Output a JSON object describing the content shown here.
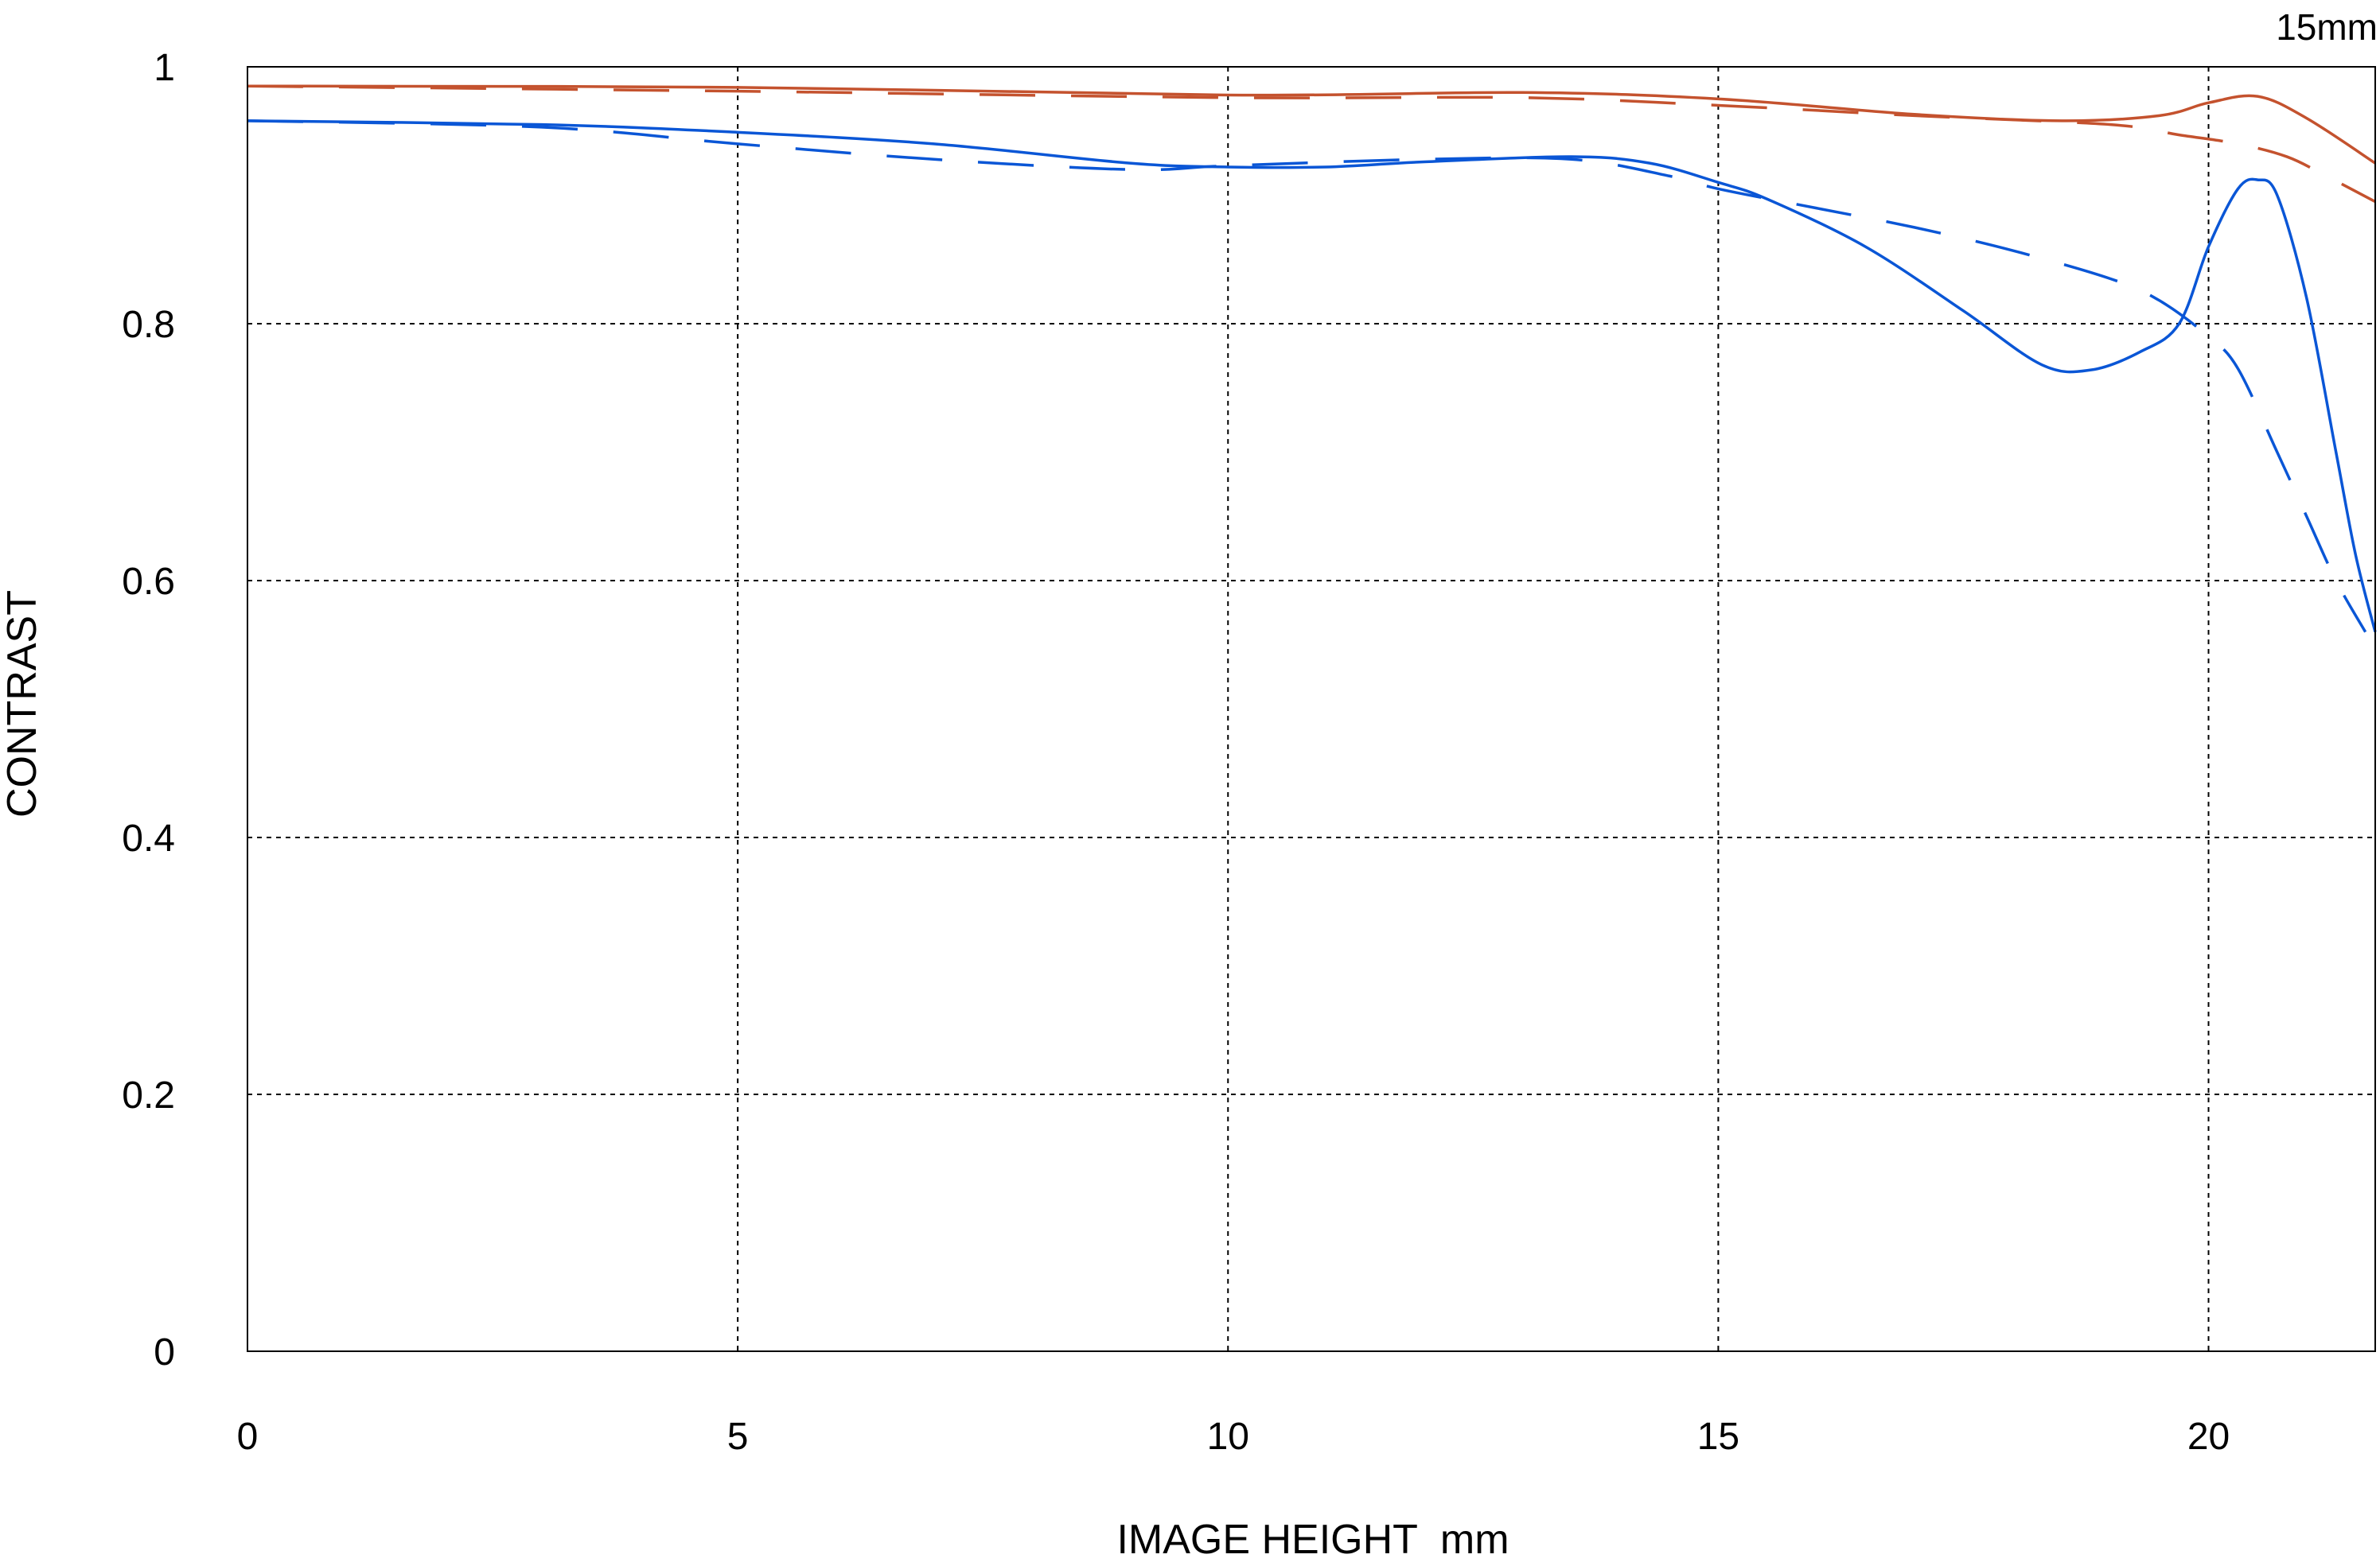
{
  "chart_data": {
    "type": "line",
    "title": "15mm",
    "xlabel": "IMAGE HEIGHT  mm",
    "ylabel": "CONTRAST",
    "xlim": [
      0,
      21.7
    ],
    "ylim": [
      0,
      1
    ],
    "xticks": [
      0,
      5,
      10,
      15,
      20
    ],
    "yticks": [
      0,
      0.2,
      0.4,
      0.6,
      0.8,
      1
    ],
    "xtick_labels": [
      "0",
      "5",
      "10",
      "15",
      "20"
    ],
    "ytick_labels": [
      "0",
      "0.2",
      "0.4",
      "0.6",
      "0.8",
      "1"
    ],
    "grid": true,
    "series": [
      {
        "color": "#c4522e",
        "style": "solid",
        "x": [
          0,
          5,
          10,
          13,
          15,
          17,
          18.5,
          19.5,
          20,
          20.5,
          21,
          21.7
        ],
        "y": [
          0.985,
          0.984,
          0.978,
          0.98,
          0.975,
          0.963,
          0.958,
          0.962,
          0.972,
          0.977,
          0.96,
          0.925
        ]
      },
      {
        "color": "#c4522e",
        "style": "dashed",
        "x": [
          0,
          5,
          10,
          13,
          15,
          17,
          19,
          19.7,
          20.3,
          20.8,
          21.2,
          21.7
        ],
        "y": [
          0.985,
          0.981,
          0.976,
          0.976,
          0.97,
          0.962,
          0.955,
          0.947,
          0.94,
          0.93,
          0.915,
          0.895
        ]
      },
      {
        "color": "#0a56d6",
        "style": "solid",
        "x": [
          0,
          3,
          5,
          7,
          9,
          10,
          11,
          12,
          13.5,
          14.3,
          15,
          15.5,
          16.5,
          17.5,
          18.3,
          18.8,
          19.3,
          19.7,
          20,
          20.3,
          20.5,
          20.7,
          21,
          21.3,
          21.5,
          21.7
        ],
        "y": [
          0.958,
          0.955,
          0.949,
          0.94,
          0.925,
          0.922,
          0.922,
          0.926,
          0.93,
          0.925,
          0.91,
          0.897,
          0.86,
          0.81,
          0.768,
          0.764,
          0.778,
          0.8,
          0.86,
          0.905,
          0.912,
          0.9,
          0.82,
          0.7,
          0.62,
          0.56
        ]
      },
      {
        "color": "#0a56d6",
        "style": "dashed",
        "x": [
          0,
          3,
          5,
          7,
          9,
          10,
          12,
          13.5,
          14.5,
          15,
          16,
          17,
          18,
          19,
          19.5,
          20,
          20.3,
          20.7,
          21,
          21.3,
          21.6
        ],
        "y": [
          0.958,
          0.953,
          0.94,
          0.928,
          0.92,
          0.923,
          0.928,
          0.928,
          0.915,
          0.905,
          0.89,
          0.875,
          0.857,
          0.835,
          0.818,
          0.79,
          0.765,
          0.7,
          0.65,
          0.6,
          0.56
        ]
      }
    ]
  }
}
